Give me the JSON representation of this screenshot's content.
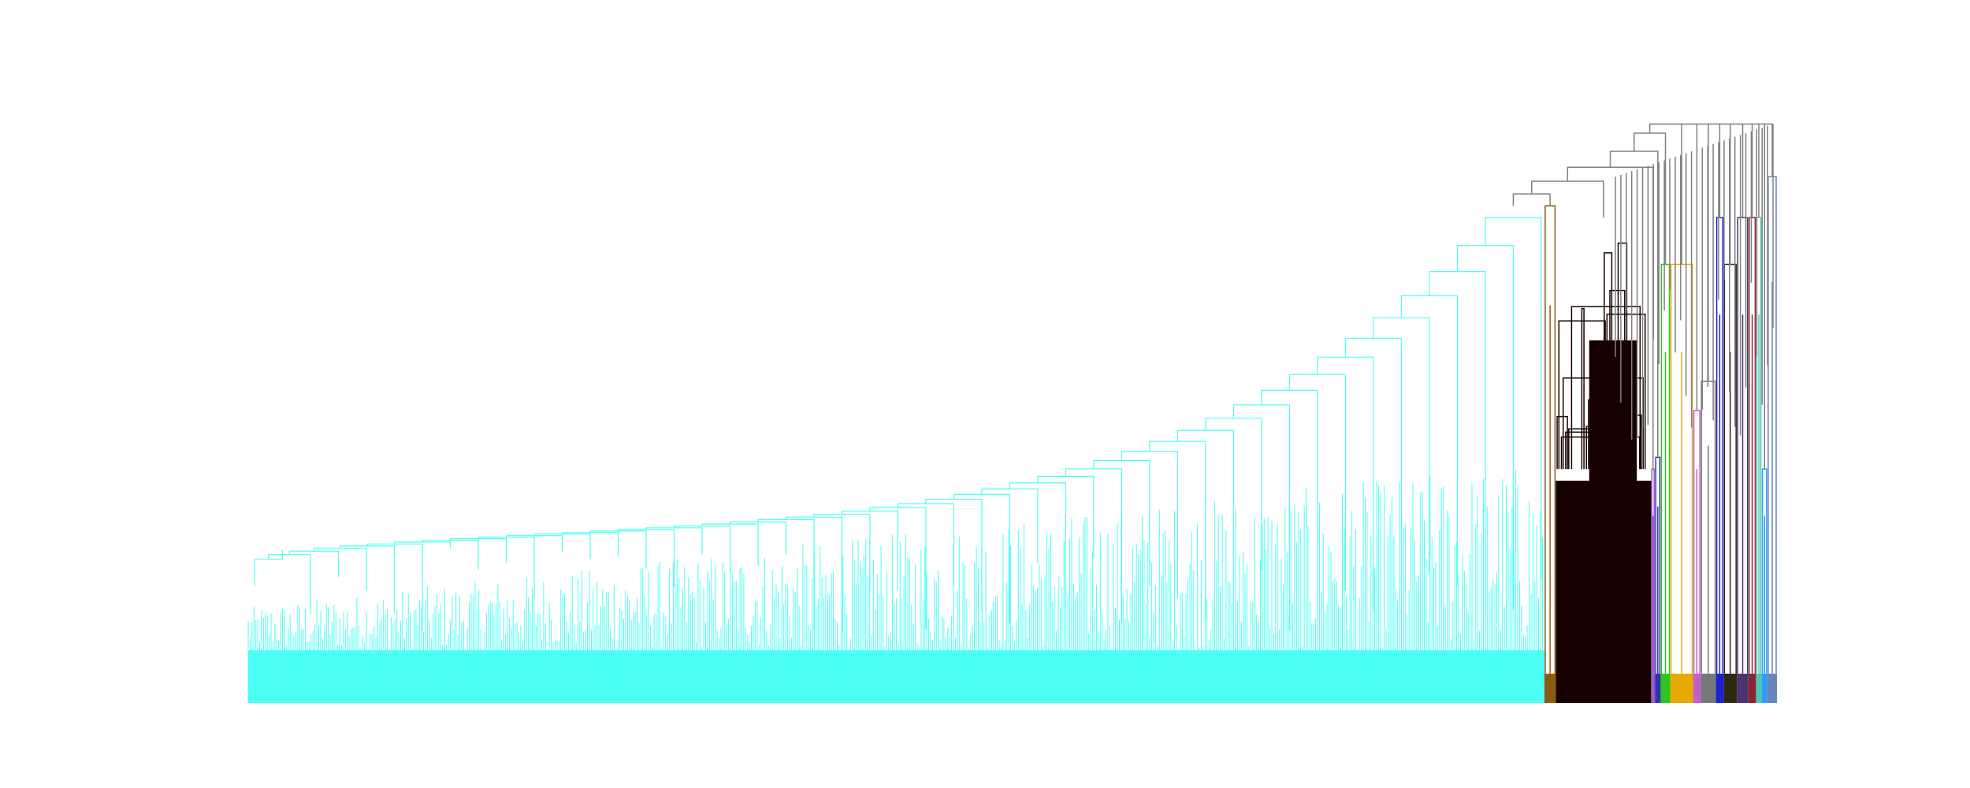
{
  "chart_data": {
    "type": "dendrogram",
    "title": "",
    "xlabel": "",
    "ylabel": "",
    "axes_visible": false,
    "grid": false,
    "legend": "none",
    "ylim": [
      0,
      1
    ],
    "root_height": 0.99,
    "clusters": [
      {
        "color": "#4dfff4",
        "leaves": 1360,
        "height": 0.85,
        "link_style": "staircase"
      },
      {
        "color": "#8b5a14",
        "leaves": 12,
        "height": 0.85,
        "link_style": "block"
      },
      {
        "color": "#170000",
        "leaves": 100,
        "height": 0.83,
        "link_style": "dense"
      },
      {
        "color": "#9b59d0",
        "leaves": 4,
        "height": 0.4,
        "link_style": "block"
      },
      {
        "color": "#3333aa",
        "leaves": 6,
        "height": 0.42,
        "link_style": "block"
      },
      {
        "color": "#2ec41f",
        "leaves": 10,
        "height": 0.75,
        "link_style": "block"
      },
      {
        "color": "#e6aa00",
        "leaves": 24,
        "height": 0.75,
        "link_style": "block"
      },
      {
        "color": "#c45ec8",
        "leaves": 8,
        "height": 0.5,
        "link_style": "block"
      },
      {
        "color": "#77787a",
        "leaves": 16,
        "height": 0.55,
        "link_style": "block"
      },
      {
        "color": "#1f1fd6",
        "leaves": 8,
        "height": 0.83,
        "link_style": "block"
      },
      {
        "color": "#2a2a12",
        "leaves": 14,
        "height": 0.75,
        "link_style": "block"
      },
      {
        "color": "#4b3370",
        "leaves": 12,
        "height": 0.83,
        "link_style": "block"
      },
      {
        "color": "#8a2433",
        "leaves": 8,
        "height": 0.83,
        "link_style": "block"
      },
      {
        "color": "#4ac8b0",
        "leaves": 6,
        "height": 0.83,
        "link_style": "block"
      },
      {
        "color": "#2f9bff",
        "leaves": 6,
        "height": 0.4,
        "link_style": "block"
      },
      {
        "color": "#6a86b8",
        "leaves": 10,
        "height": 0.9,
        "link_style": "block"
      }
    ],
    "above_threshold_color": "#808080"
  }
}
